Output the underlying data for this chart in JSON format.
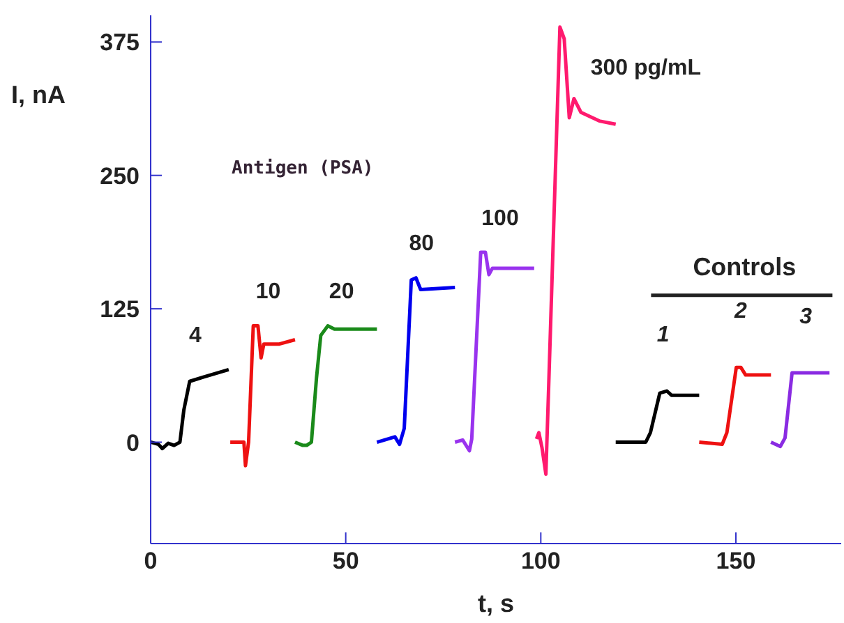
{
  "chart_data": {
    "type": "line",
    "xlabel": "t, s",
    "ylabel": "I, nA",
    "xlim": [
      0,
      177
    ],
    "ylim": [
      -95,
      400
    ],
    "xticks": [
      0,
      50,
      100,
      150
    ],
    "yticks": [
      0,
      125,
      250,
      375
    ],
    "grid": false,
    "legend": false,
    "marker": "none",
    "line_style": "solid",
    "series": [
      {
        "name": "4",
        "color": "#000000",
        "x": [
          0,
          2,
          3,
          4.5,
          6,
          7.5,
          8.5,
          10,
          13.5,
          20
        ],
        "values": [
          0,
          -2,
          -6,
          -1,
          -3,
          0,
          30,
          57,
          61,
          68
        ]
      },
      {
        "name": "10",
        "color": "#ee1111",
        "x": [
          20.4,
          23.9,
          24.3,
          25.1,
          26.3,
          27.5,
          28.3,
          29,
          33,
          37
        ],
        "values": [
          0,
          0,
          -22,
          0,
          109,
          109,
          79,
          92,
          92,
          96
        ]
      },
      {
        "name": "20",
        "color": "#1a8a1a",
        "x": [
          37,
          39,
          40,
          41.2,
          42.5,
          43.6,
          45.4,
          47.1,
          58
        ],
        "values": [
          0,
          -3,
          -3,
          0,
          60,
          100,
          109,
          106,
          106
        ]
      },
      {
        "name": "80",
        "color": "#0000ee",
        "x": [
          58,
          62.6,
          63.8,
          65,
          66.8,
          68,
          69.2,
          78
        ],
        "values": [
          0,
          5,
          -2,
          13,
          152,
          154,
          143,
          145
        ]
      },
      {
        "name": "100",
        "color": "#9933ee",
        "x": [
          78,
          80,
          81.7,
          82.3,
          84.6,
          85.8,
          86.7,
          87.6,
          98.3
        ],
        "values": [
          0,
          2,
          -8,
          3,
          178,
          178,
          157,
          163,
          163
        ]
      },
      {
        "name": "300 pg/mL",
        "color": "#ff1a6e",
        "x": [
          98.9,
          99.5,
          100.3,
          101.3,
          102,
          104.9,
          106,
          107.3,
          108.5,
          110.3,
          115,
          119.2
        ],
        "values": [
          3,
          9,
          -5,
          -30,
          50,
          389,
          378,
          304,
          322,
          309,
          301,
          298
        ]
      },
      {
        "name": "1",
        "color": "#000000",
        "x": [
          119.2,
          126.9,
          128.1,
          130.5,
          132.3,
          133.5,
          140.6
        ],
        "values": [
          0,
          0,
          9,
          46,
          48,
          44,
          44
        ]
      },
      {
        "name": "2",
        "color": "#ee1111",
        "x": [
          140.6,
          146.5,
          147.7,
          150.1,
          151.3,
          152.5,
          159
        ],
        "values": [
          0,
          -2,
          9,
          70,
          70,
          63,
          63
        ]
      },
      {
        "name": "3",
        "color": "#8a2be2",
        "x": [
          159,
          161.4,
          162.6,
          164.4,
          166.2,
          174
        ],
        "values": [
          0,
          -4,
          4,
          65,
          65,
          65
        ]
      }
    ],
    "annotations": [
      "Antigen (PSA)",
      "Controls"
    ]
  }
}
